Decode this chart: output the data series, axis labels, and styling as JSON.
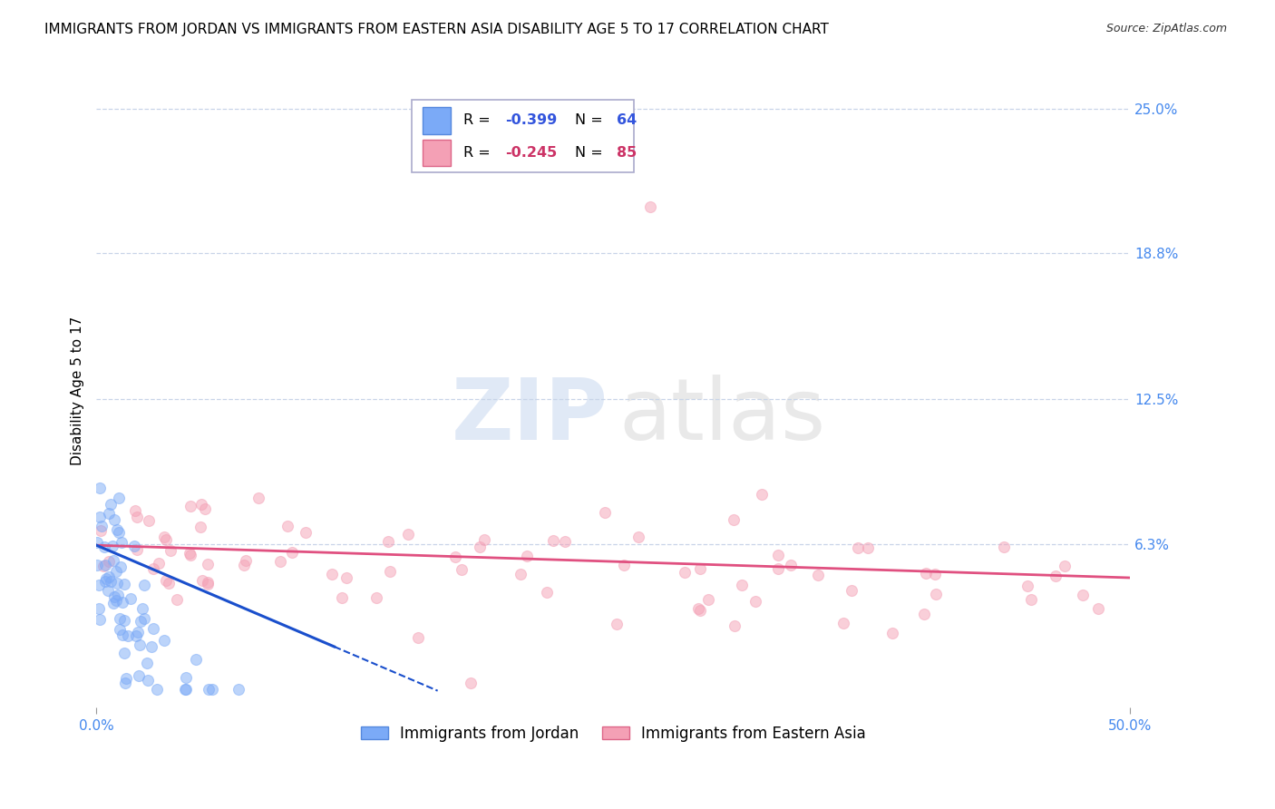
{
  "title": "IMMIGRANTS FROM JORDAN VS IMMIGRANTS FROM EASTERN ASIA DISABILITY AGE 5 TO 17 CORRELATION CHART",
  "source": "Source: ZipAtlas.com",
  "ylabel": "Disability Age 5 to 17",
  "xlim": [
    0.0,
    0.5
  ],
  "ylim": [
    -0.008,
    0.265
  ],
  "ytick_vals": [
    0.0625,
    0.125,
    0.188,
    0.25
  ],
  "ytick_labels": [
    "6.3%",
    "12.5%",
    "18.8%",
    "25.0%"
  ],
  "xtick_vals": [
    0.0,
    0.5
  ],
  "xtick_labels": [
    "0.0%",
    "50.0%"
  ],
  "grid_color": "#c8d4e8",
  "background_color": "#ffffff",
  "jordan_color": "#7baaf7",
  "jordan_edge": "#5588dd",
  "jordan_line_color": "#1a4fcc",
  "east_color": "#f4a0b5",
  "east_edge": "#dd6688",
  "east_line_color": "#e05080",
  "marker_size": 75,
  "alpha": 0.5,
  "title_fontsize": 11,
  "axis_label_fontsize": 11,
  "tick_fontsize": 11,
  "legend_R_jordan": "-0.399",
  "legend_N_jordan": "64",
  "legend_R_east": "-0.245",
  "legend_N_east": "85"
}
